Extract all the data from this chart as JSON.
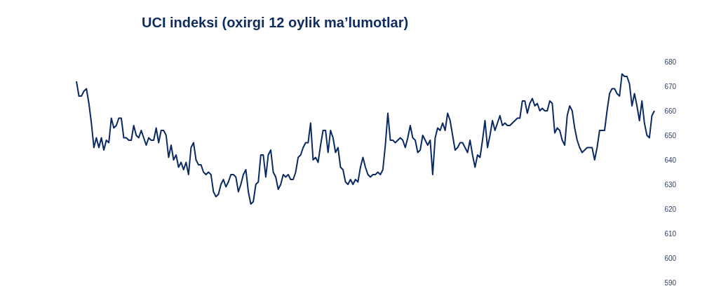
{
  "chart_data": {
    "type": "line",
    "title": "UCI indeksi (oxirgi 12 oylik ma’lumotlar)",
    "categories": [
      null,
      null,
      null,
      null,
      null,
      null,
      null,
      null,
      null,
      null,
      null,
      null,
      null,
      null,
      null,
      null,
      null,
      null,
      null,
      null,
      null,
      null,
      null,
      null,
      null,
      null,
      null,
      null,
      null,
      null,
      null,
      null,
      null,
      null,
      null,
      null,
      null,
      null,
      null,
      null,
      null,
      null,
      null,
      null,
      null,
      null,
      null,
      null,
      null,
      null,
      null,
      null,
      null,
      null,
      null,
      null,
      null,
      null,
      null,
      null,
      null,
      null,
      null,
      null,
      null,
      null,
      null,
      null,
      null,
      null,
      null,
      null,
      null,
      null,
      null,
      null,
      null,
      null,
      null,
      null,
      null,
      null,
      null,
      null,
      null,
      null,
      null,
      null,
      null,
      null,
      null,
      null,
      null,
      null,
      null,
      null,
      null,
      null,
      null,
      null,
      null,
      null,
      null,
      null,
      null,
      null,
      null,
      null,
      null,
      null,
      null,
      null,
      null,
      null,
      null,
      null,
      null,
      null,
      null,
      null,
      null,
      null,
      null,
      null,
      null,
      null,
      null,
      null,
      null,
      null,
      null,
      null,
      null,
      null,
      null,
      null,
      null,
      null,
      null,
      null,
      null,
      null,
      null,
      null,
      null,
      null,
      null,
      null,
      null,
      null,
      null,
      null,
      null,
      null,
      null,
      null,
      null,
      null,
      null,
      null,
      null,
      null,
      null,
      null,
      null,
      null,
      null,
      null,
      null,
      null,
      null,
      null,
      null,
      null,
      null,
      null,
      null,
      null,
      null,
      null,
      null,
      null,
      null,
      null,
      null,
      null,
      null,
      null,
      null,
      null,
      null,
      null,
      null,
      null,
      null,
      null,
      null,
      null,
      null,
      null,
      null,
      null,
      null,
      null,
      null,
      null,
      null,
      null,
      null,
      null,
      null,
      null,
      null,
      null,
      null,
      null,
      null,
      null,
      null,
      null,
      null,
      null,
      null,
      null,
      null,
      null,
      null,
      null,
      null,
      null,
      null,
      null,
      null
    ],
    "series": [
      {
        "color": "#0b2a63",
        "values": [
          672,
          666,
          666,
          668,
          669,
          663,
          655,
          645,
          649,
          645,
          649,
          644,
          648,
          647,
          657,
          653,
          654,
          657,
          657,
          649,
          649,
          648,
          648,
          654,
          650,
          649,
          652,
          649,
          646,
          649,
          648,
          648,
          653,
          647,
          652,
          652,
          650,
          641,
          646,
          640,
          642,
          637,
          639,
          636,
          639,
          634,
          645,
          647,
          640,
          638,
          638,
          635,
          634,
          635,
          634,
          627,
          625,
          626,
          630,
          632,
          629,
          631,
          634,
          634,
          633,
          627,
          630,
          634,
          636,
          627,
          622,
          623,
          630,
          631,
          642,
          642,
          633,
          642,
          644,
          635,
          633,
          628,
          630,
          634,
          633,
          634,
          632,
          632,
          635,
          641,
          642,
          645,
          647,
          647,
          655,
          640,
          641,
          639,
          646,
          652,
          652,
          643,
          652,
          649,
          643,
          645,
          637,
          636,
          631,
          630,
          632,
          630,
          632,
          631,
          637,
          641,
          637,
          634,
          633,
          634,
          634,
          635,
          634,
          636,
          646,
          659,
          648,
          648,
          647,
          648,
          649,
          648,
          645,
          649,
          654,
          649,
          648,
          643,
          644,
          650,
          648,
          646,
          648,
          634,
          649,
          653,
          652,
          655,
          652,
          659,
          656,
          650,
          644,
          645,
          647,
          647,
          645,
          643,
          648,
          642,
          637,
          642,
          641,
          648,
          656,
          645,
          650,
          656,
          652,
          655,
          658,
          654,
          655,
          654,
          654,
          655,
          656,
          657,
          657,
          664,
          664,
          659,
          663,
          665,
          662,
          663,
          660,
          661,
          660,
          660,
          664,
          663,
          651,
          653,
          652,
          648,
          646,
          658,
          662,
          660,
          653,
          648,
          645,
          643,
          644,
          645,
          645,
          645,
          640,
          645,
          652,
          652,
          652,
          660,
          667,
          669,
          669,
          667,
          666,
          675,
          674,
          674,
          671,
          662,
          667,
          662,
          656,
          664,
          655,
          650,
          649,
          658,
          660
        ]
      }
    ],
    "ylim": [
      590,
      680
    ],
    "yticks": [
      590,
      600,
      610,
      620,
      630,
      640,
      650,
      660,
      670,
      680
    ],
    "tick_labels": "y",
    "grid": false,
    "line_style": "solid",
    "marker": "none"
  }
}
